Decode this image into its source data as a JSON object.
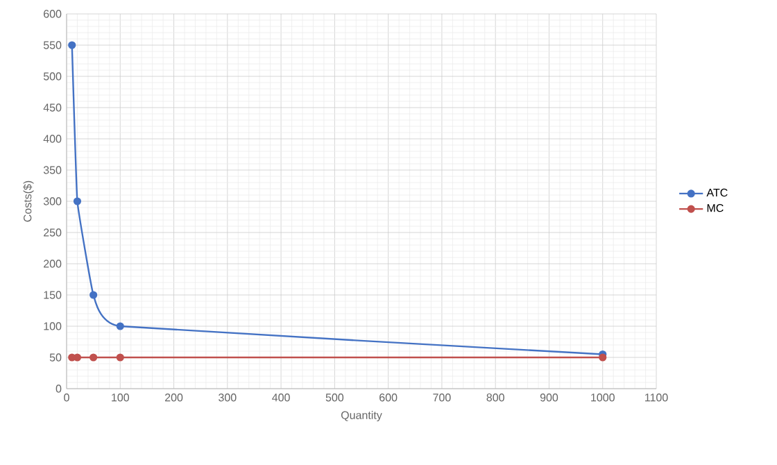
{
  "chart_data": {
    "type": "line",
    "xlabel": "Quantity",
    "ylabel": "Costs($)",
    "x": [
      10,
      20,
      50,
      100,
      1000
    ],
    "series": [
      {
        "name": "ATC",
        "color": "#4472c4",
        "values": [
          550,
          300,
          150,
          100,
          55
        ]
      },
      {
        "name": "MC",
        "color": "#c0504d",
        "values": [
          50,
          50,
          50,
          50,
          50
        ]
      }
    ],
    "xlim": [
      0,
      1100
    ],
    "ylim": [
      0,
      600
    ],
    "xticks": [
      0,
      100,
      200,
      300,
      400,
      500,
      600,
      700,
      800,
      900,
      1000,
      1100
    ],
    "yticks": [
      0,
      50,
      100,
      150,
      200,
      250,
      300,
      350,
      400,
      450,
      500,
      550,
      600
    ],
    "grid": true,
    "legend": "right",
    "marker": "circle",
    "line_style": "solid"
  }
}
